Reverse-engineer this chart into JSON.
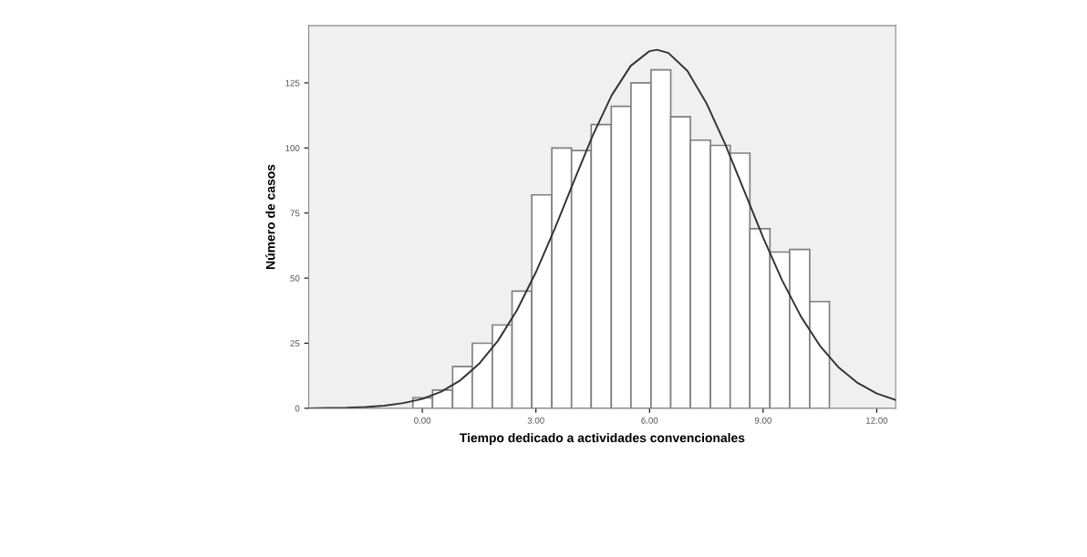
{
  "chart_data": {
    "type": "histogram",
    "xlabel": "Tiempo dedicado a actividades convencionales",
    "ylabel": "Número de casos",
    "bins": [
      -0.25,
      0.27,
      0.8,
      1.32,
      1.85,
      2.37,
      2.89,
      3.42,
      3.94,
      4.46,
      4.99,
      5.51,
      6.04,
      6.56,
      7.08,
      7.61,
      8.13,
      8.65,
      9.18,
      9.7,
      10.23,
      10.75
    ],
    "values": [
      4,
      7,
      16,
      25,
      32,
      45,
      82,
      100,
      99,
      109,
      116,
      125,
      130,
      112,
      103,
      101,
      98,
      69,
      60,
      61,
      41
    ],
    "color": "#ffffff",
    "series": [
      {
        "type": "line",
        "color": "#333333",
        "x": [
          -3,
          -2.5,
          -2,
          -1.5,
          -1,
          -0.5,
          0,
          0.5,
          1,
          1.5,
          2,
          2.5,
          3,
          3.5,
          4,
          4.5,
          5,
          5.5,
          6,
          6.2,
          6.5,
          7,
          7.5,
          8,
          8.5,
          9,
          9.5,
          10,
          10.5,
          11,
          11.5,
          12,
          12.5
        ],
        "values": [
          0,
          0.1,
          0.2,
          0.5,
          1.0,
          2.0,
          3.6,
          6.4,
          10.7,
          17.1,
          26.0,
          37.7,
          52.3,
          69.1,
          87.1,
          104.8,
          120.2,
          131.5,
          137.2,
          137.7,
          136.5,
          129.6,
          117.3,
          101.4,
          83.5,
          65.6,
          49.2,
          35.2,
          24.0,
          15.6,
          9.7,
          5.7,
          3.2
        ]
      }
    ],
    "xlim": [
      -3,
      12.5
    ],
    "ylim": [
      0,
      147
    ],
    "xticks": [
      {
        "value": 0,
        "label": "0.00"
      },
      {
        "value": 3,
        "label": "3.00"
      },
      {
        "value": 6,
        "label": "6.00"
      },
      {
        "value": 9,
        "label": "9.00"
      },
      {
        "value": 12,
        "label": "12.00"
      }
    ],
    "yticks": [
      0,
      25,
      50,
      75,
      100,
      125
    ],
    "grid": false,
    "legend": false
  }
}
